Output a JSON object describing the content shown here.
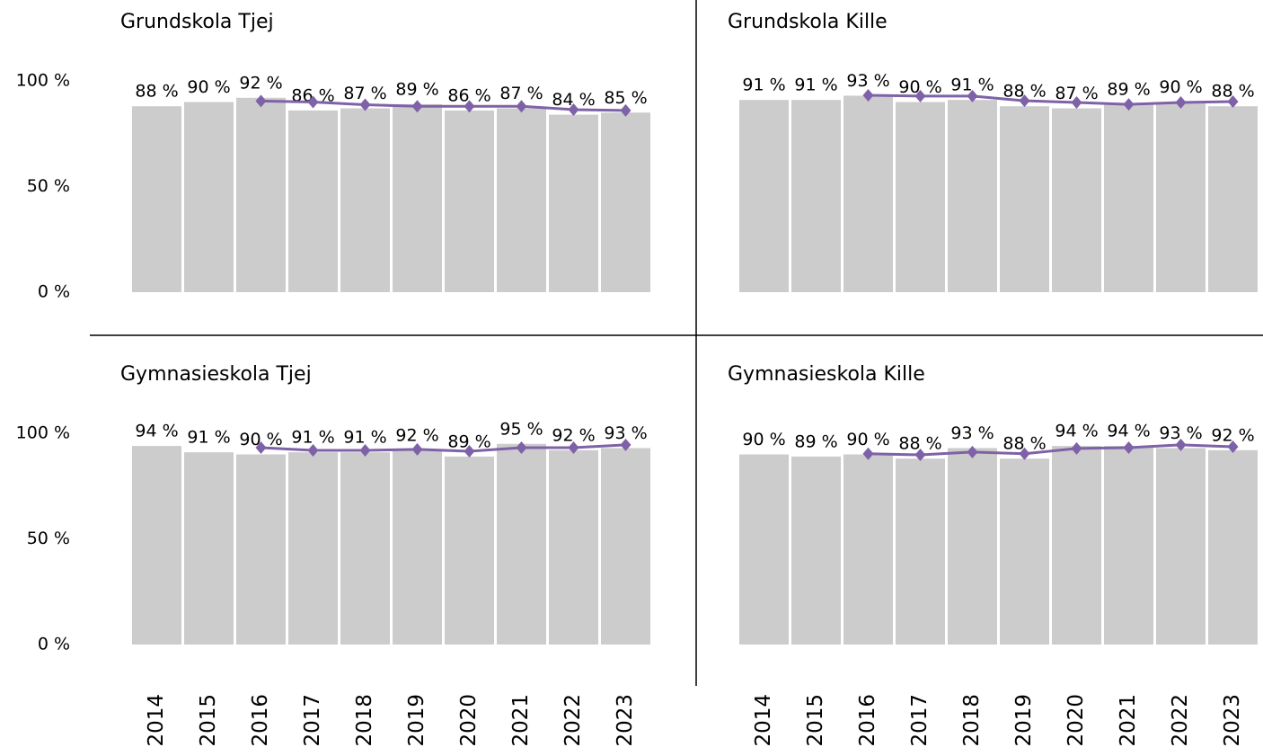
{
  "chart_data": [
    {
      "type": "bar",
      "title": "Grundskola Tjej",
      "values": [
        88,
        90,
        92,
        86,
        87,
        89,
        86,
        87,
        84,
        85
      ],
      "value_labels": [
        "88 %",
        "90 %",
        "92 %",
        "86 %",
        "87 %",
        "89 %",
        "86 %",
        "87 %",
        "84 %",
        "85 %"
      ],
      "line_values": [
        null,
        null,
        90.5,
        90,
        88.7,
        88,
        88,
        88,
        86.4,
        86
      ],
      "color": "#cccccc",
      "line_color": "#7e62a8",
      "ylim": [
        0,
        100
      ],
      "yticks": [
        {
          "value": 0,
          "label": "0 %"
        },
        {
          "value": 50,
          "label": "50 %"
        },
        {
          "value": 100,
          "label": "100 %"
        }
      ]
    },
    {
      "type": "bar",
      "title": "Grundskola Kille",
      "values": [
        91,
        91,
        93,
        90,
        91,
        88,
        87,
        89,
        90,
        88
      ],
      "value_labels": [
        "91 %",
        "91 %",
        "93 %",
        "90 %",
        "91 %",
        "88 %",
        "87 %",
        "89 %",
        "90 %",
        "88 %"
      ],
      "line_values": [
        null,
        null,
        93.2,
        92.8,
        92.8,
        90.6,
        89.8,
        88.9,
        89.8,
        90.2
      ],
      "color": "#cccccc",
      "line_color": "#7e62a8",
      "ylim": [
        0,
        100
      ]
    },
    {
      "type": "bar",
      "title": "Gymnasieskola Tjej",
      "categories": [
        "2014",
        "2015",
        "2016",
        "2017",
        "2018",
        "2019",
        "2020",
        "2021",
        "2022",
        "2023"
      ],
      "values": [
        94,
        91,
        90,
        91,
        91,
        92,
        89,
        95,
        92,
        93
      ],
      "value_labels": [
        "94 %",
        "91 %",
        "90 %",
        "91 %",
        "91 %",
        "92 %",
        "89 %",
        "95 %",
        "92 %",
        "93 %"
      ],
      "line_values": [
        null,
        null,
        93.2,
        91.9,
        91.9,
        92.4,
        91.5,
        93.2,
        93.2,
        94.5
      ],
      "color": "#cccccc",
      "line_color": "#7e62a8",
      "ylim": [
        0,
        100
      ],
      "yticks": [
        {
          "value": 0,
          "label": "0 %"
        },
        {
          "value": 50,
          "label": "50 %"
        },
        {
          "value": 100,
          "label": "100 %"
        }
      ]
    },
    {
      "type": "bar",
      "title": "Gymnasieskola Kille",
      "categories": [
        "2014",
        "2015",
        "2016",
        "2017",
        "2018",
        "2019",
        "2020",
        "2021",
        "2022",
        "2023"
      ],
      "values": [
        90,
        89,
        90,
        88,
        93,
        88,
        94,
        94,
        93,
        92
      ],
      "value_labels": [
        "90 %",
        "89 %",
        "90 %",
        "88 %",
        "93 %",
        "88 %",
        "94 %",
        "94 %",
        "93 %",
        "92 %"
      ],
      "line_values": [
        null,
        null,
        90.3,
        89.8,
        91.1,
        90.3,
        92.8,
        93.2,
        94.5,
        93.6
      ],
      "color": "#cccccc",
      "line_color": "#7e62a8",
      "ylim": [
        0,
        100
      ]
    }
  ]
}
